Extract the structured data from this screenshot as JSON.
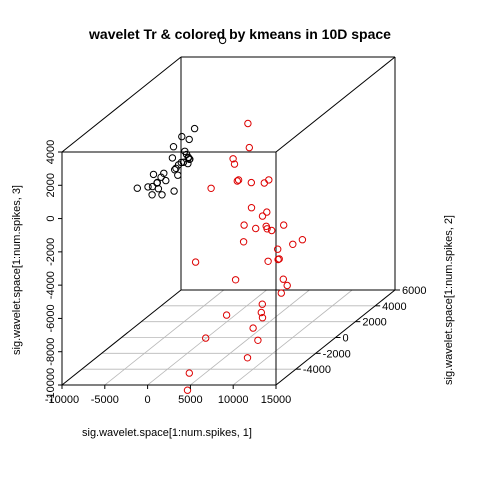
{
  "chart_data": {
    "type": "scatter",
    "title": "wavelet Tr & colored by kmeans in 10D space",
    "xlabel": "sig.wavelet.space[1:num.spikes, 1]",
    "ylabel": "sig.wavelet.space[1:num.spikes, 2]",
    "zlabel": "sig.wavelet.space[1:num.spikes, 3]",
    "xlim": [
      -10000,
      15000
    ],
    "ylim": [
      -6000,
      6000
    ],
    "zlim": [
      -10000,
      4000
    ],
    "x_ticks": [
      "-10000",
      "-5000",
      "0",
      "5000",
      "10000",
      "15000"
    ],
    "y_ticks": [
      "-4000",
      "-2000",
      "0",
      "2000",
      "4000",
      "6000"
    ],
    "z_ticks": [
      "-10000",
      "-8000",
      "-6000",
      "-4000",
      "-2000",
      "0",
      "2000",
      "4000"
    ],
    "grid": true,
    "colors": {
      "cluster_1": "#000000",
      "cluster_2": "#dd0000"
    },
    "series": [
      {
        "color": "#000000",
        "points": [
          [
            -4450,
            5400,
            5280
          ],
          [
            -880,
            -500,
            2790
          ],
          [
            -2600,
            -310,
            2220
          ],
          [
            -1750,
            -290,
            2040
          ],
          [
            -3500,
            -370,
            1640
          ],
          [
            -2400,
            0,
            1000
          ],
          [
            -2600,
            0,
            1190
          ],
          [
            -2900,
            -1000,
            1270
          ],
          [
            -5800,
            -400,
            -10
          ],
          [
            -2060,
            -1100,
            900
          ],
          [
            -1950,
            -700,
            860
          ],
          [
            -1500,
            -600,
            1060
          ],
          [
            -2200,
            0,
            830
          ],
          [
            -5400,
            -1300,
            -330
          ],
          [
            -3550,
            -200,
            180
          ],
          [
            -3400,
            -200,
            260
          ],
          [
            -2900,
            -100,
            560
          ],
          [
            -1900,
            -100,
            760
          ],
          [
            -1830,
            -200,
            800
          ],
          [
            -3500,
            -1350,
            510
          ],
          [
            -3750,
            -1400,
            300
          ],
          [
            -4200,
            -1400,
            -20
          ],
          [
            -3900,
            -800,
            -190
          ],
          [
            -2500,
            -800,
            130
          ],
          [
            -1900,
            -300,
            590
          ],
          [
            -6300,
            -1600,
            -270
          ],
          [
            -5100,
            -1100,
            -410
          ],
          [
            -4700,
            -1000,
            -240
          ],
          [
            -4300,
            -1200,
            -490
          ],
          [
            -4800,
            -1400,
            -760
          ],
          [
            -2820,
            -890,
            -780
          ],
          [
            -3300,
            -1700,
            -620
          ]
        ]
      },
      {
        "color": "#dd0000",
        "points": [
          [
            5970,
            -900,
            1840
          ],
          [
            3500,
            -400,
            930
          ],
          [
            4010,
            -700,
            750
          ],
          [
            5150,
            -1270,
            70
          ],
          [
            5350,
            -1570,
            150
          ],
          [
            6750,
            -1370,
            -40
          ],
          [
            8350,
            -990,
            -60
          ],
          [
            9300,
            -2260,
            360
          ],
          [
            9300,
            -3550,
            -510
          ],
          [
            8200,
            -3350,
            -1650
          ],
          [
            8400,
            -1200,
            -2900
          ],
          [
            8000,
            -2000,
            -2500
          ],
          [
            10130,
            -3160,
            -1200
          ],
          [
            11240,
            -3740,
            -1540
          ],
          [
            9480,
            -2160,
            -1440
          ],
          [
            10550,
            -2590,
            -2340
          ],
          [
            11500,
            -2200,
            -2200
          ],
          [
            7800,
            -3050,
            -2800
          ],
          [
            7500,
            -3600,
            -4820
          ],
          [
            6800,
            -3900,
            -6800
          ],
          [
            8400,
            -1100,
            -4900
          ],
          [
            10800,
            -2200,
            -3650
          ],
          [
            11940,
            -700,
            -3790
          ],
          [
            12200,
            -1890,
            -3500
          ],
          [
            13450,
            -4340,
            -3210
          ],
          [
            12950,
            -4020,
            -3400
          ],
          [
            13630,
            -3690,
            -5120
          ],
          [
            13860,
            -4280,
            -4460
          ],
          [
            14010,
            -4610,
            -5140
          ],
          [
            12020,
            -4810,
            -5710
          ],
          [
            10930,
            -4310,
            -8120
          ],
          [
            10820,
            -4700,
            -7200
          ],
          [
            11620,
            -4560,
            -6330
          ],
          [
            11580,
            -4410,
            -6710
          ],
          [
            9810,
            -4390,
            -9130
          ],
          [
            4700,
            -4200,
            -8040
          ],
          [
            4200,
            -5600,
            -10500
          ],
          [
            3480,
            1110,
            2330
          ],
          [
            2400,
            -3870,
            -10300
          ],
          [
            3600,
            -2700,
            250
          ],
          [
            2700,
            -3490,
            -3810
          ]
        ]
      }
    ]
  }
}
